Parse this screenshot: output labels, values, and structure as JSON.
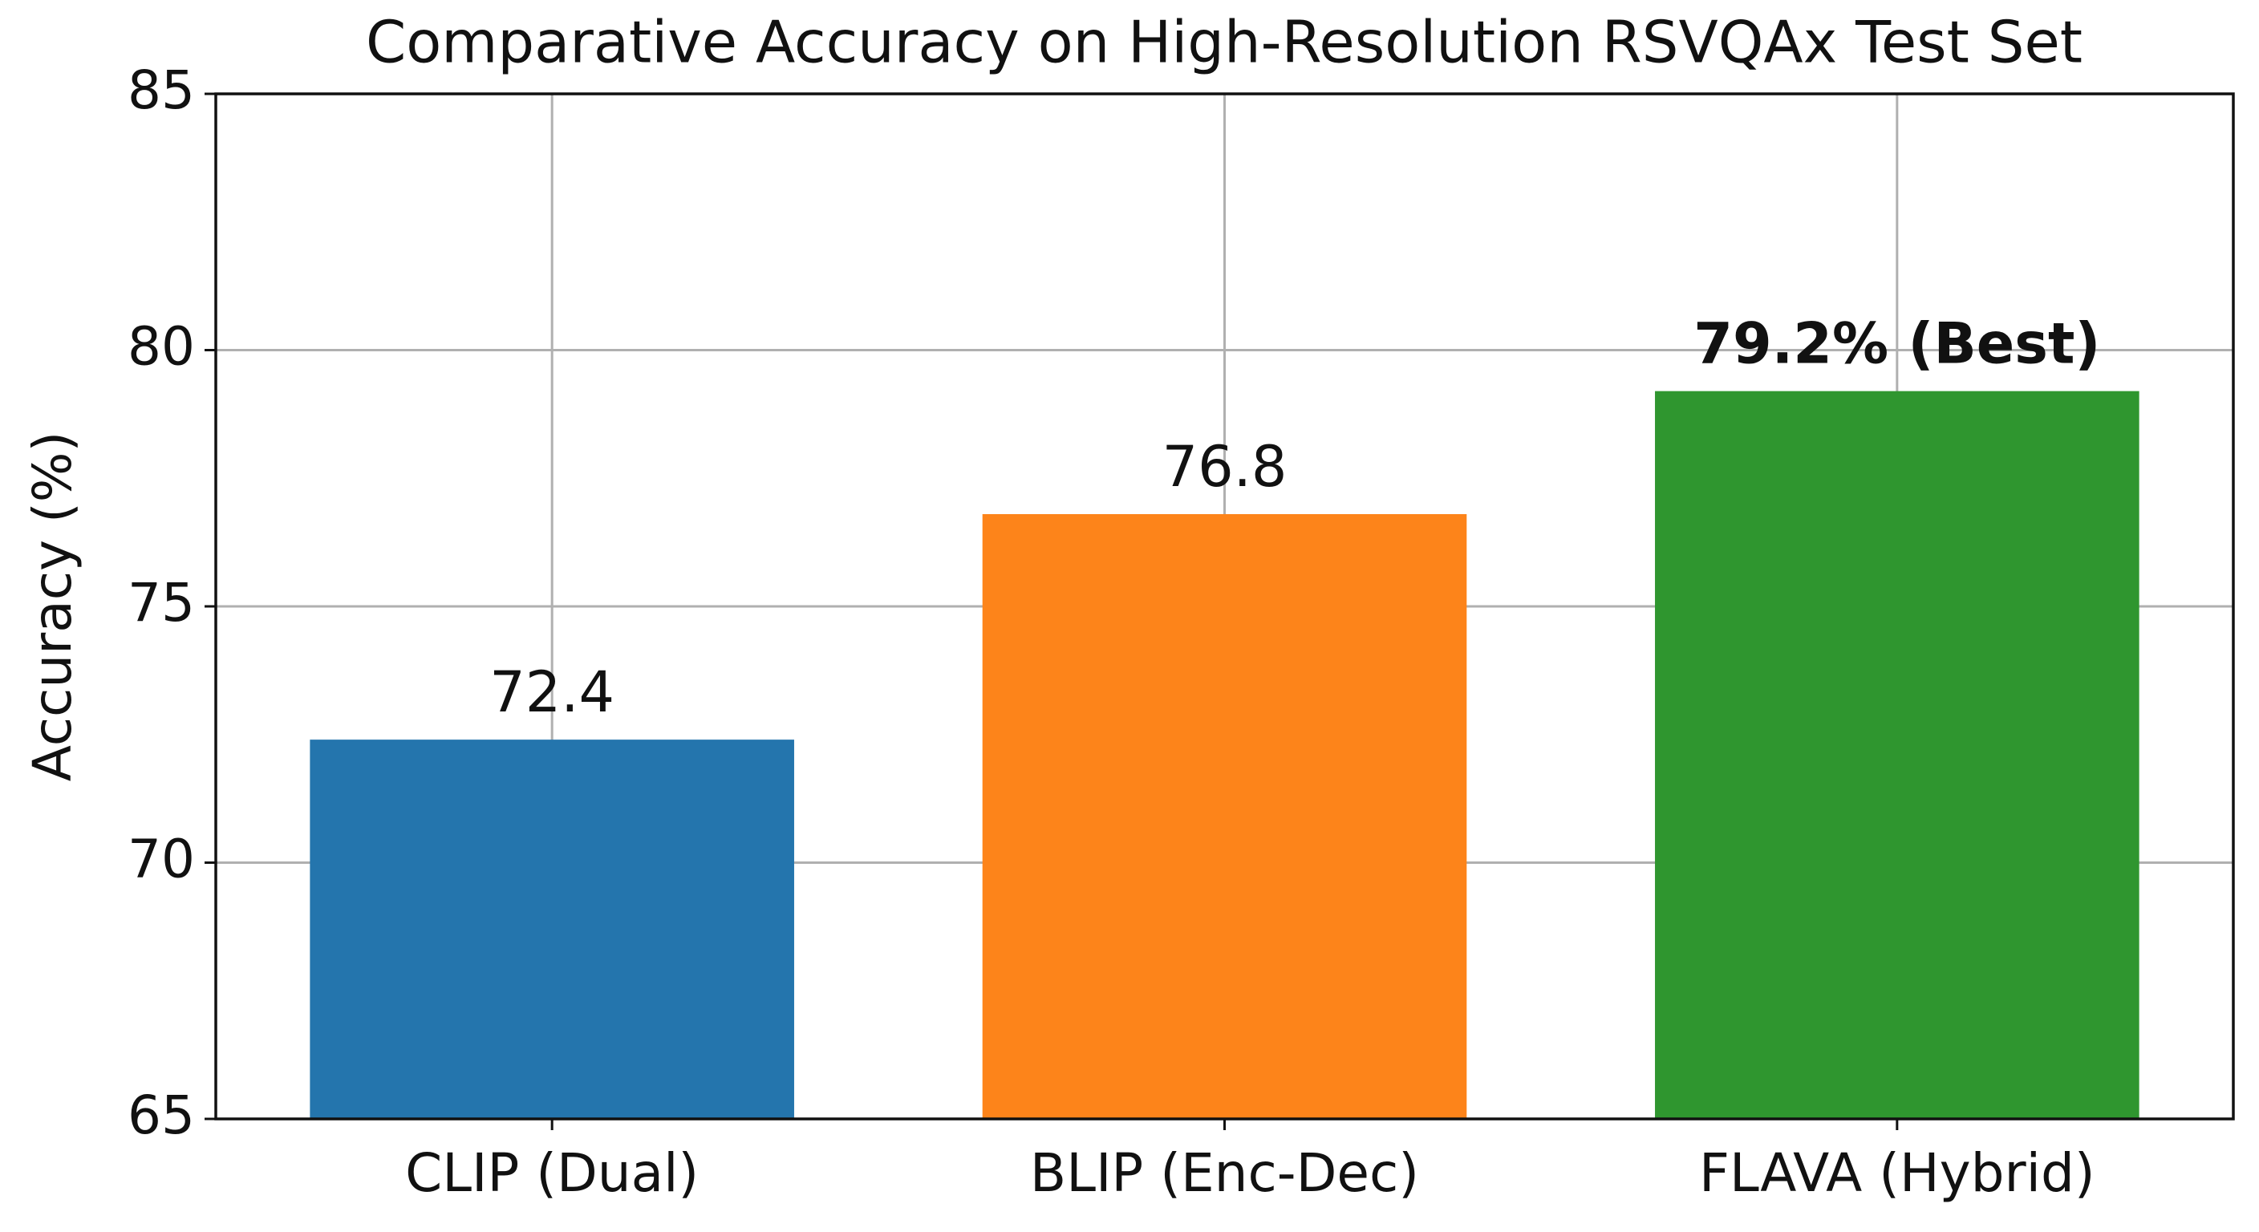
{
  "chart_data": {
    "type": "bar",
    "title": "Comparative Accuracy on High-Resolution RSVQAx Test Set",
    "y_label": "Accuracy (%)",
    "categories": [
      "CLIP (Dual)",
      "BLIP (Enc-Dec)",
      "FLAVA (Hybrid)"
    ],
    "values": [
      72.4,
      76.8,
      79.2
    ],
    "value_labels": [
      "72.4",
      "76.8",
      "79.2% (Best)"
    ],
    "colors": [
      "#2475ad",
      "#fd841a",
      "#2f962f"
    ],
    "ylim": [
      65,
      85
    ],
    "yticks": [
      65,
      70,
      75,
      80,
      85
    ],
    "grid": true
  }
}
